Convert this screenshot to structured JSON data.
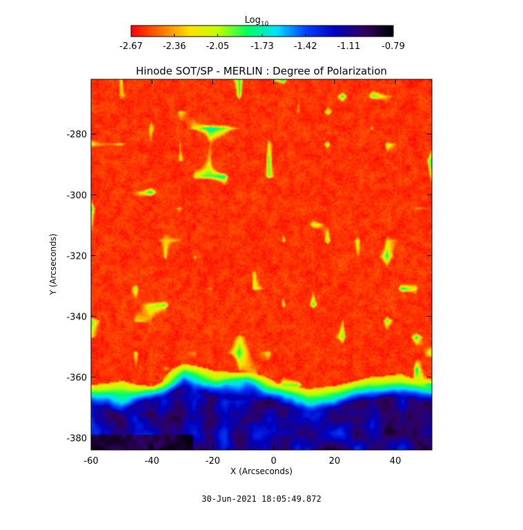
{
  "chart_data": {
    "type": "heatmap",
    "title": "Hinode SOT/SP - MERLIN : Degree of Polarization",
    "xlabel": "X (Arcseconds)",
    "ylabel": "Y (Arcseconds)",
    "xlim": [
      -60,
      52
    ],
    "ylim": [
      -384,
      -262
    ],
    "xticks": [
      "-60",
      "-40",
      "-20",
      "0",
      "20",
      "40"
    ],
    "xtick_values": [
      -60,
      -40,
      -20,
      0,
      20,
      40
    ],
    "yticks": [
      "-280",
      "-300",
      "-320",
      "-340",
      "-360",
      "-380"
    ],
    "ytick_values": [
      -280,
      -300,
      -320,
      -340,
      -360,
      -380
    ],
    "colorbar": {
      "label_base": "Log",
      "label_sub": "10",
      "ticks": [
        "-2.67",
        "-2.36",
        "-2.05",
        "-1.73",
        "-1.42",
        "-1.11",
        "-0.79"
      ],
      "tick_values": [
        -2.67,
        -2.36,
        -2.05,
        -1.73,
        -1.42,
        -1.11,
        -0.79
      ],
      "colors": [
        "#ff0000",
        "#ff7000",
        "#ffe000",
        "#c0ff00",
        "#00ff60",
        "#00e0ff",
        "#0040ff",
        "#0000c0",
        "#300060",
        "#000000"
      ]
    },
    "regions": {
      "background_level": -2.67,
      "strong_band_y": [
        -384,
        -366
      ],
      "strong_level": -0.95
    }
  },
  "timestamp": "30-Jun-2021 18:05:49.872"
}
